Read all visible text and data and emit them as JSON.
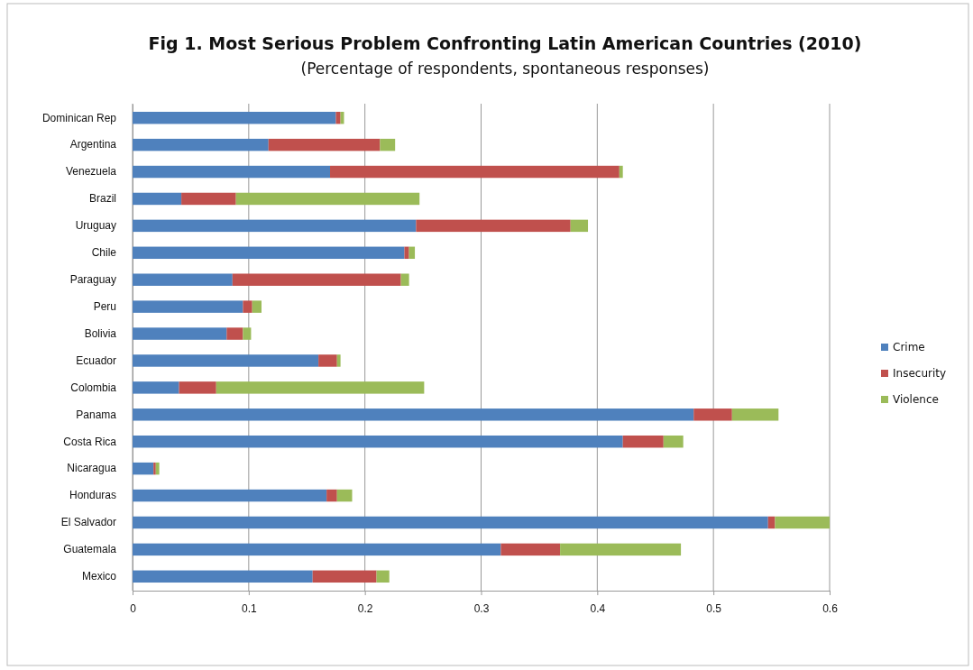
{
  "chart_data": {
    "type": "bar",
    "orientation": "horizontal",
    "stacked": true,
    "title": "Fig 1. Most Serious Problem Confronting Latin American Countries (2010)",
    "subtitle": "(Percentage of respondents, spontaneous responses)",
    "categories": [
      "Dominican Rep",
      "Argentina",
      "Venezuela",
      "Brazil",
      "Uruguay",
      "Chile",
      "Paraguay",
      "Peru",
      "Bolivia",
      "Ecuador",
      "Colombia",
      "Panama",
      "Costa Rica",
      "Nicaragua",
      "Honduras",
      "El Salvador",
      "Guatemala",
      "Mexico"
    ],
    "series": [
      {
        "name": "Crime",
        "color": "#4f81bd",
        "values": [
          0.175,
          0.117,
          0.17,
          0.042,
          0.244,
          0.234,
          0.086,
          0.095,
          0.081,
          0.16,
          0.04,
          0.483,
          0.422,
          0.018,
          0.167,
          0.547,
          0.317,
          0.155
        ]
      },
      {
        "name": "Insecurity",
        "color": "#c0504d",
        "values": [
          0.004,
          0.096,
          0.249,
          0.047,
          0.133,
          0.004,
          0.145,
          0.008,
          0.014,
          0.016,
          0.032,
          0.033,
          0.035,
          0.002,
          0.009,
          0.006,
          0.051,
          0.055
        ]
      },
      {
        "name": "Violence",
        "color": "#9bbb59",
        "values": [
          0.003,
          0.013,
          0.003,
          0.158,
          0.015,
          0.005,
          0.007,
          0.008,
          0.007,
          0.003,
          0.179,
          0.04,
          0.017,
          0.003,
          0.013,
          0.047,
          0.104,
          0.011
        ]
      }
    ],
    "xlim": [
      0,
      0.6
    ],
    "xticks": [
      0,
      0.1,
      0.2,
      0.3,
      0.4,
      0.5,
      0.6
    ],
    "grid": "x",
    "legend": "right"
  }
}
